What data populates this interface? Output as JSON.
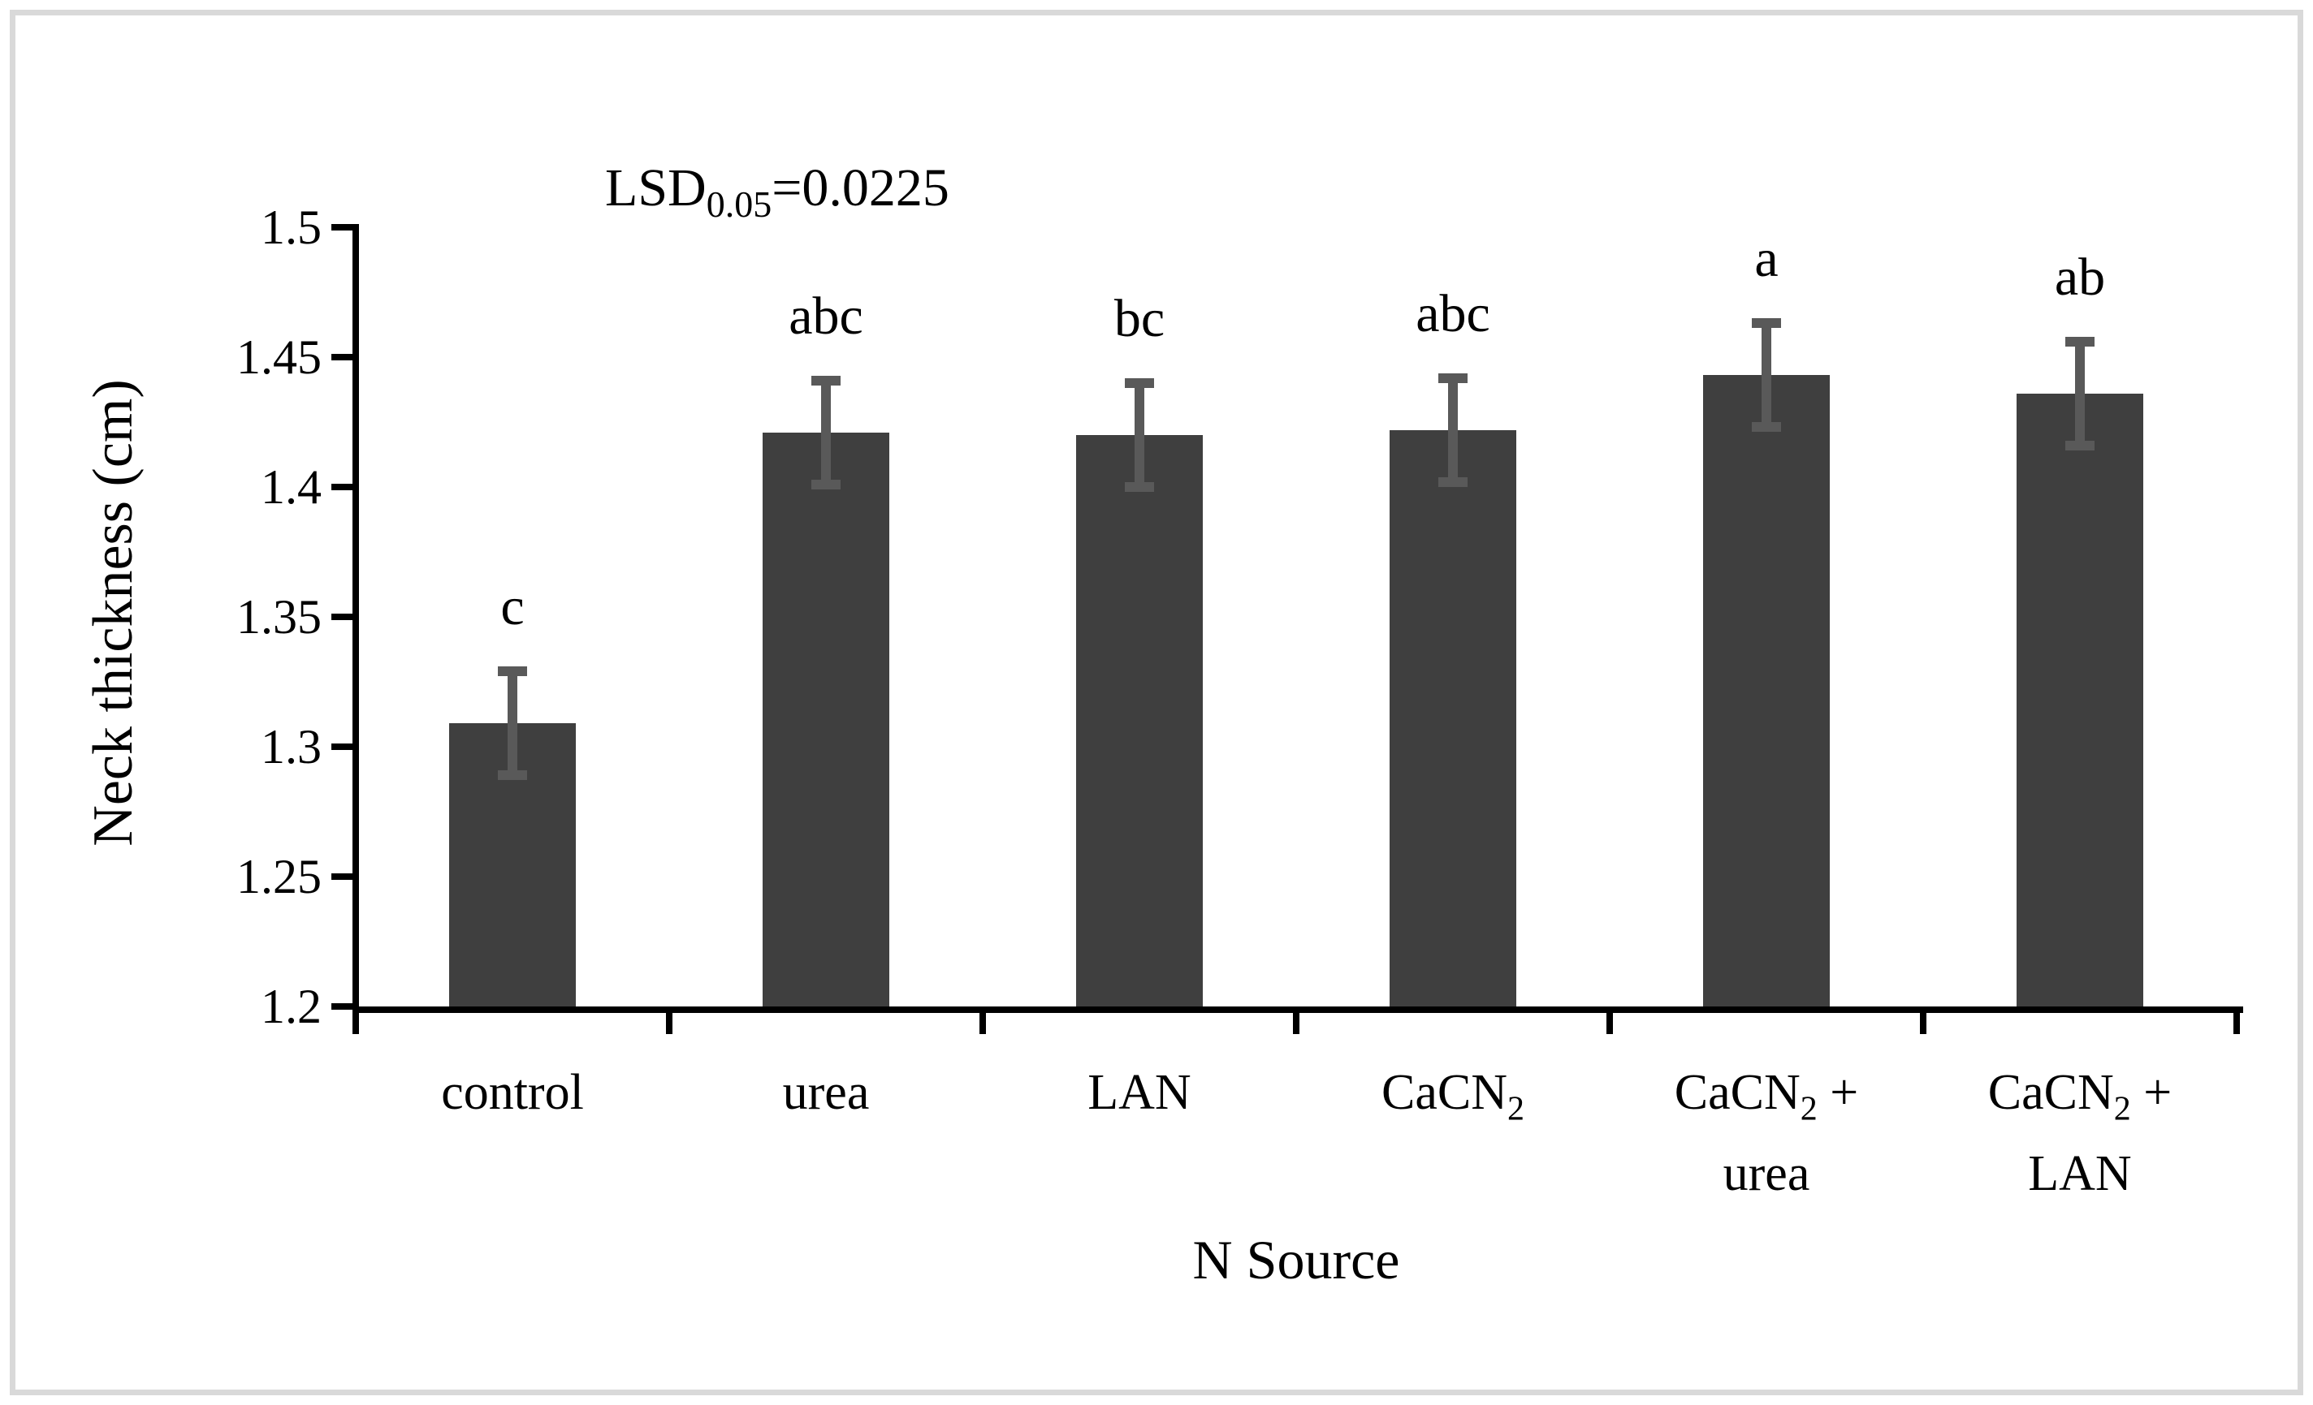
{
  "figure": {
    "background": "#ffffff",
    "border_color": "#d9d9d9"
  },
  "chart_data": {
    "type": "bar",
    "title": "",
    "annotation": {
      "text": "LSD0.05=0.0225",
      "prefix": "LSD",
      "subscript": "0.05",
      "rest": "=0.0225"
    },
    "xlabel": "N Source",
    "ylabel": "Neck thickness (cm)",
    "ylim": [
      1.2,
      1.5
    ],
    "ytick_step": 0.05,
    "ytick_labels": [
      "1.5",
      "1.45",
      "1.4",
      "1.35",
      "1.3",
      "1.25",
      "1.2"
    ],
    "categories": [
      "control",
      "urea",
      "LAN",
      "CaCN2",
      "CaCN2 + urea",
      "CaCN2 + LAN"
    ],
    "category_labels": [
      {
        "lines": [
          [
            "control"
          ]
        ]
      },
      {
        "lines": [
          [
            "urea"
          ]
        ]
      },
      {
        "lines": [
          [
            "LAN"
          ]
        ]
      },
      {
        "lines": [
          [
            "CaCN",
            {
              "sub": "2"
            }
          ]
        ]
      },
      {
        "lines": [
          [
            "CaCN",
            {
              "sub": "2"
            },
            " +"
          ],
          [
            "urea"
          ]
        ]
      },
      {
        "lines": [
          [
            "CaCN",
            {
              "sub": "2"
            },
            " +"
          ],
          [
            "LAN"
          ]
        ]
      }
    ],
    "values": [
      1.309,
      1.421,
      1.42,
      1.422,
      1.443,
      1.436
    ],
    "error_bars": [
      0.02,
      0.02,
      0.02,
      0.02,
      0.02,
      0.02
    ],
    "sig_letters": [
      "c",
      "abc",
      "bc",
      "abc",
      "a",
      "ab"
    ],
    "bar_color": "#3f3f3f",
    "error_bar_color": "#595959",
    "axis_color": "#000000",
    "grid": false,
    "legend": false
  }
}
